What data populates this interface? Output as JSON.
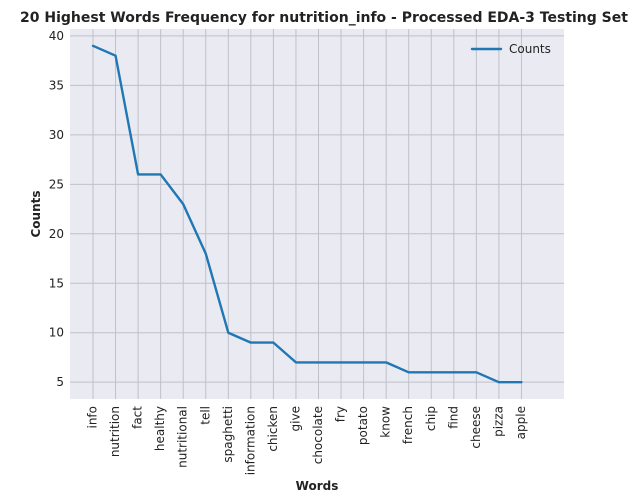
{
  "chart_data": {
    "type": "line",
    "title": "20 Highest Words Frequency for nutrition_info - Processed EDA-3 Testing Set",
    "xlabel": "Words",
    "ylabel": "Counts",
    "categories": [
      "info",
      "nutrition",
      "fact",
      "healthy",
      "nutritional",
      "tell",
      "spaghetti",
      "information",
      "chicken",
      "give",
      "chocolate",
      "fry",
      "potato",
      "know",
      "french",
      "chip",
      "find",
      "cheese",
      "pizza",
      "apple"
    ],
    "series": [
      {
        "name": "Counts",
        "values": [
          39,
          38,
          26,
          26,
          23,
          18,
          10,
          9,
          9,
          7,
          7,
          7,
          7,
          7,
          6,
          6,
          6,
          6,
          5,
          5
        ],
        "color": "#1f77b4"
      }
    ],
    "ylim": [
      3.3,
      40.7
    ],
    "yticks": [
      5,
      10,
      15,
      20,
      25,
      30,
      35,
      40
    ],
    "grid": true,
    "legend": "top-right",
    "colors": {
      "plot_background": "#eaeaf2",
      "grid": "#c0c0c8",
      "line": "#1f77b4"
    }
  }
}
